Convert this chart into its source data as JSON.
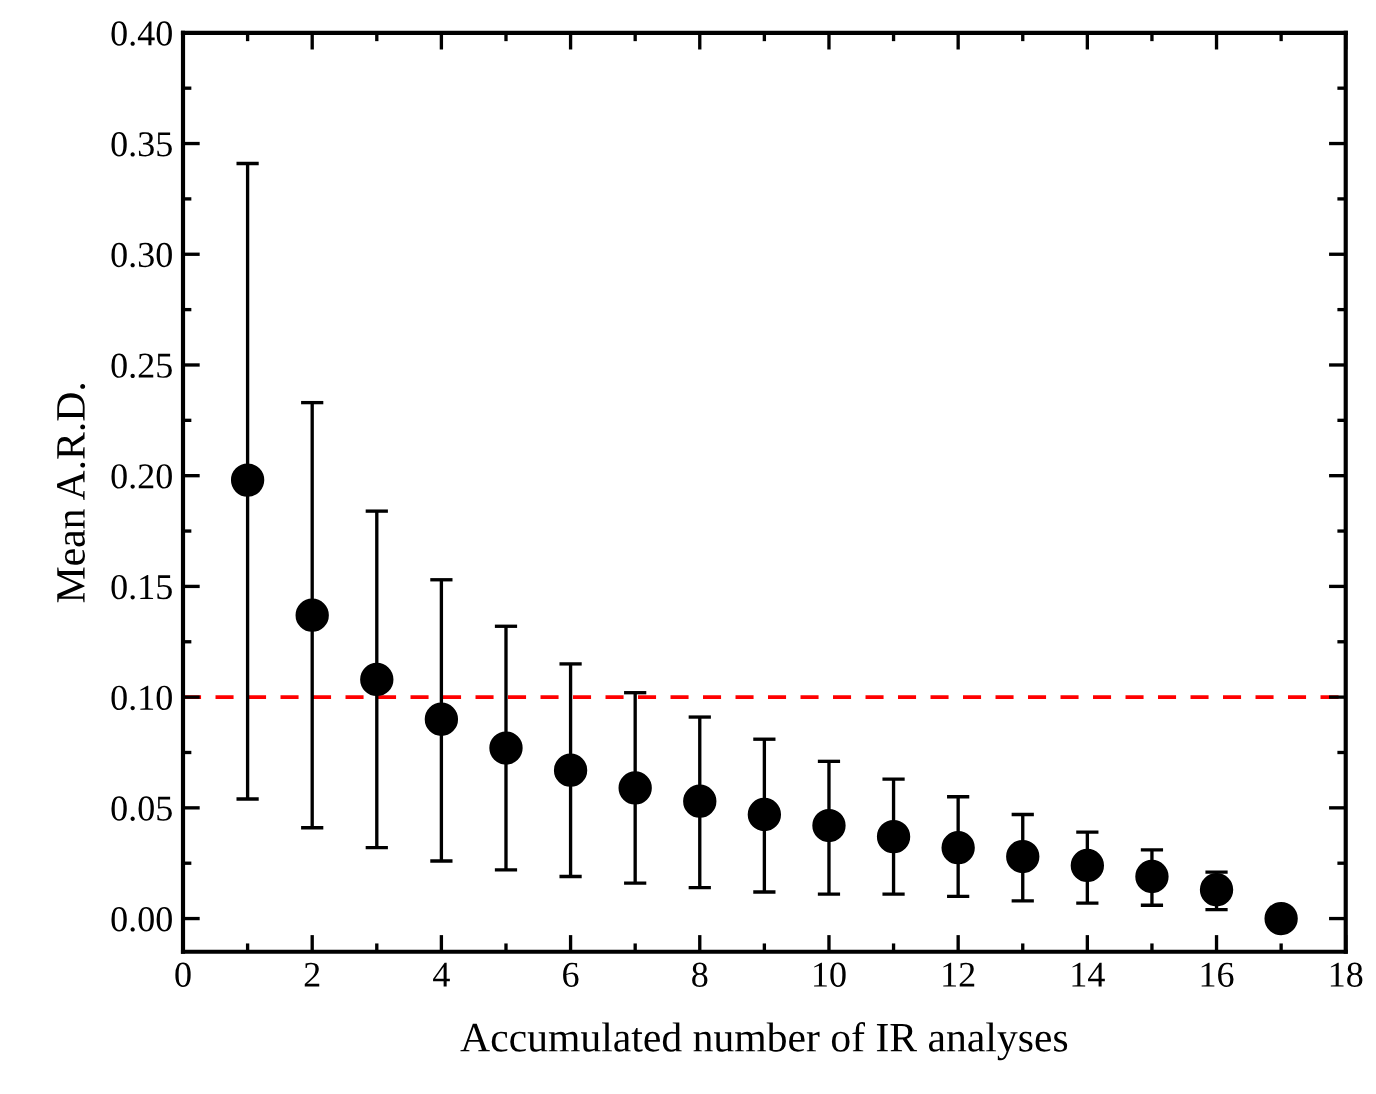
{
  "chart_data": {
    "type": "scatter",
    "xlabel": "Accumulated number of IR analyses",
    "ylabel": "Mean A.R.D.",
    "x": [
      1,
      2,
      3,
      4,
      5,
      6,
      7,
      8,
      9,
      10,
      11,
      12,
      13,
      14,
      15,
      16,
      17
    ],
    "values": [
      0.198,
      0.137,
      0.108,
      0.09,
      0.077,
      0.067,
      0.059,
      0.053,
      0.047,
      0.042,
      0.037,
      0.032,
      0.028,
      0.024,
      0.019,
      0.013,
      0.0
    ],
    "errors": [
      [
        0.054,
        0.341
      ],
      [
        0.041,
        0.233
      ],
      [
        0.032,
        0.184
      ],
      [
        0.026,
        0.153
      ],
      [
        0.022,
        0.132
      ],
      [
        0.019,
        0.115
      ],
      [
        0.016,
        0.102
      ],
      [
        0.014,
        0.091
      ],
      [
        0.012,
        0.081
      ],
      [
        0.011,
        0.071
      ],
      [
        0.011,
        0.063
      ],
      [
        0.01,
        0.055
      ],
      [
        0.008,
        0.047
      ],
      [
        0.007,
        0.039
      ],
      [
        0.006,
        0.031
      ],
      [
        0.004,
        0.021
      ],
      null
    ],
    "color": "#000000",
    "marker": "circle",
    "xlim": [
      0,
      18
    ],
    "xticks": [
      0,
      2,
      4,
      6,
      8,
      10,
      12,
      14,
      16,
      18
    ],
    "ylim": [
      -0.015,
      0.4
    ],
    "yticks": [
      {
        "value": 0,
        "label": "0.00"
      },
      0.05,
      {
        "value": 0.1,
        "label": "0.10"
      },
      0.15,
      {
        "value": 0.2,
        "label": "0.20"
      },
      0.25,
      {
        "value": 0.3,
        "label": "0.30"
      },
      0.35,
      {
        "value": 0.4,
        "label": "0.40"
      }
    ],
    "ref_lines": [
      {
        "axis": "y",
        "value": 0.1,
        "color": "#ff0000",
        "line_style": "dashed"
      }
    ],
    "grid": false,
    "legend": false
  }
}
